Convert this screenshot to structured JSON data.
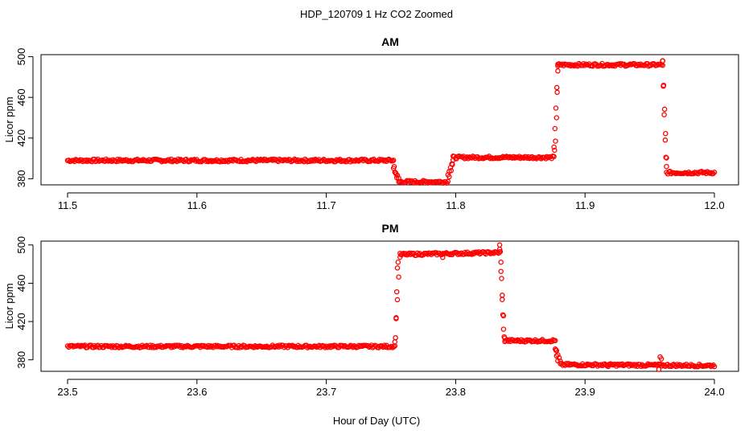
{
  "figure": {
    "title": "HDP_120709  1 Hz CO2 Zoomed",
    "xlabel": "Hour of Day (UTC)",
    "marker_color": "#ff0000"
  },
  "chart_data": [
    {
      "type": "scatter",
      "title": "AM",
      "ylabel": "Licor ppm",
      "xlim": [
        11.5,
        12.0
      ],
      "ylim": [
        374,
        502
      ],
      "xticks": [
        "11.5",
        "11.6",
        "11.7",
        "11.8",
        "11.9",
        "12.0"
      ],
      "yticks": [
        "380",
        "420",
        "460",
        "500"
      ],
      "grid": false,
      "segments": [
        {
          "x": [
            11.5,
            11.752
          ],
          "y": [
            398,
            398
          ]
        },
        {
          "x": [
            11.752,
            11.756
          ],
          "y": [
            390,
            380
          ]
        },
        {
          "x": [
            11.756,
            11.794
          ],
          "y": [
            377,
            377
          ]
        },
        {
          "x": [
            11.794,
            11.798
          ],
          "y": [
            385,
            398
          ]
        },
        {
          "x": [
            11.798,
            11.876
          ],
          "y": [
            401,
            401
          ]
        },
        {
          "x": [
            11.876,
            11.879
          ],
          "y": [
            410,
            490
          ]
        },
        {
          "x": [
            11.879,
            11.96
          ],
          "y": [
            492,
            492
          ]
        },
        {
          "x": [
            11.96,
            11.963
          ],
          "y": [
            495,
            400
          ]
        },
        {
          "x": [
            11.963,
            12.0
          ],
          "y": [
            386,
            386
          ]
        }
      ],
      "points": [
        {
          "x": 11.7525,
          "y": 392
        },
        {
          "x": 11.7535,
          "y": 386
        },
        {
          "x": 11.7545,
          "y": 381
        },
        {
          "x": 11.795,
          "y": 382
        },
        {
          "x": 11.7965,
          "y": 388
        },
        {
          "x": 11.7975,
          "y": 394
        },
        {
          "x": 11.8765,
          "y": 408
        },
        {
          "x": 11.8772,
          "y": 417
        },
        {
          "x": 11.878,
          "y": 440
        },
        {
          "x": 11.8785,
          "y": 465
        },
        {
          "x": 11.879,
          "y": 486
        },
        {
          "x": 11.96,
          "y": 496
        },
        {
          "x": 11.9605,
          "y": 471
        },
        {
          "x": 11.9612,
          "y": 443
        },
        {
          "x": 11.962,
          "y": 418
        },
        {
          "x": 11.9625,
          "y": 401
        },
        {
          "x": 11.963,
          "y": 392
        }
      ]
    },
    {
      "type": "scatter",
      "title": "PM",
      "ylabel": "Licor ppm",
      "xlim": [
        23.5,
        24.0
      ],
      "ylim": [
        368,
        504
      ],
      "xticks": [
        "23.5",
        "23.6",
        "23.7",
        "23.8",
        "23.9",
        "24.0"
      ],
      "yticks": [
        "380",
        "420",
        "460",
        "500"
      ],
      "grid": false,
      "segments": [
        {
          "x": [
            23.5,
            23.753
          ],
          "y": [
            394,
            394
          ]
        },
        {
          "x": [
            23.753,
            23.757
          ],
          "y": [
            400,
            488
          ]
        },
        {
          "x": [
            23.757,
            23.834
          ],
          "y": [
            490,
            492
          ]
        },
        {
          "x": [
            23.834,
            23.838
          ],
          "y": [
            495,
            402
          ]
        },
        {
          "x": [
            23.838,
            23.877
          ],
          "y": [
            400,
            400
          ]
        },
        {
          "x": [
            23.877,
            23.881
          ],
          "y": [
            392,
            378
          ]
        },
        {
          "x": [
            23.881,
            24.0
          ],
          "y": [
            375,
            374
          ]
        }
      ],
      "points": [
        {
          "x": 23.7535,
          "y": 403
        },
        {
          "x": 23.754,
          "y": 424
        },
        {
          "x": 23.7545,
          "y": 451
        },
        {
          "x": 23.755,
          "y": 476
        },
        {
          "x": 23.7555,
          "y": 482
        },
        {
          "x": 23.834,
          "y": 500
        },
        {
          "x": 23.8345,
          "y": 493
        },
        {
          "x": 23.835,
          "y": 482
        },
        {
          "x": 23.8355,
          "y": 465
        },
        {
          "x": 23.836,
          "y": 443
        },
        {
          "x": 23.8365,
          "y": 427
        },
        {
          "x": 23.837,
          "y": 412
        },
        {
          "x": 23.8375,
          "y": 404
        },
        {
          "x": 23.8775,
          "y": 390
        },
        {
          "x": 23.878,
          "y": 384
        },
        {
          "x": 23.879,
          "y": 379
        },
        {
          "x": 23.958,
          "y": 383
        },
        {
          "x": 23.959,
          "y": 381
        },
        {
          "x": 23.957,
          "y": 370
        },
        {
          "x": 23.79,
          "y": 487
        },
        {
          "x": 23.918,
          "y": 373
        }
      ]
    }
  ]
}
